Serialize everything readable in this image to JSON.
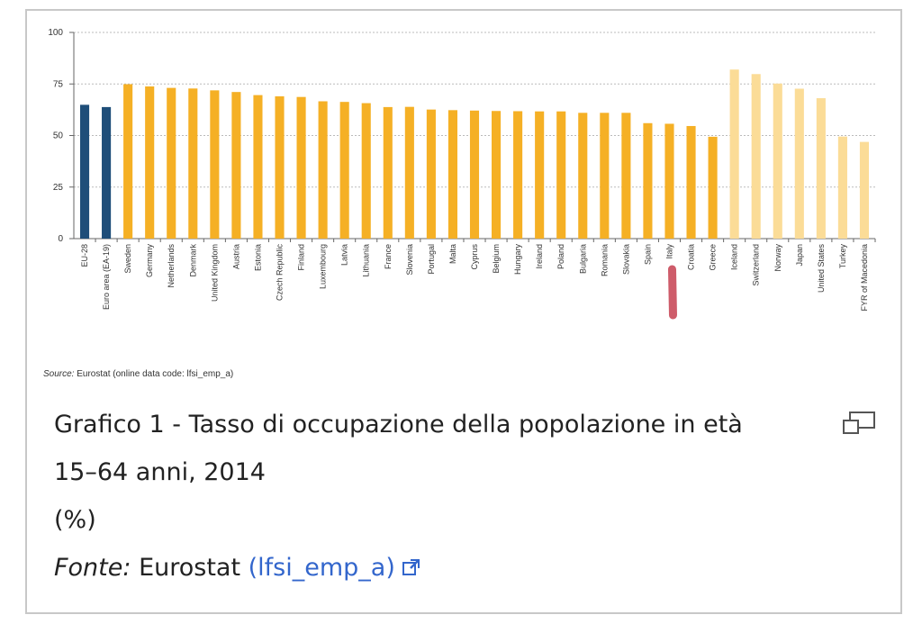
{
  "chart_data": {
    "type": "bar",
    "ylim": [
      0,
      100
    ],
    "yticks": [
      "0",
      "25",
      "50",
      "75",
      "100"
    ],
    "grid": true,
    "categories": [
      "EU-28",
      "Euro area (EA-19)",
      "Sweden",
      "Germany",
      "Netherlands",
      "Denmark",
      "United Kingdom",
      "Austria",
      "Estonia",
      "Czech Republic",
      "Finland",
      "Luxembourg",
      "Latvia",
      "Lithuania",
      "France",
      "Slovenia",
      "Portugal",
      "Malta",
      "Cyprus",
      "Belgium",
      "Hungary",
      "Ireland",
      "Poland",
      "Bulgaria",
      "Romania",
      "Slovakia",
      "Spain",
      "Italy",
      "Croatia",
      "Greece",
      "Iceland",
      "Switzerland",
      "Norway",
      "Japan",
      "United States",
      "Turkey",
      "FYR of Macedonia"
    ],
    "values": [
      64.9,
      63.8,
      74.9,
      73.8,
      73.1,
      72.8,
      71.9,
      71.1,
      69.6,
      69.0,
      68.7,
      66.6,
      66.3,
      65.7,
      63.8,
      63.9,
      62.6,
      62.3,
      62.1,
      61.9,
      61.8,
      61.7,
      61.7,
      61.0,
      61.0,
      61.0,
      56.0,
      55.7,
      54.6,
      49.4,
      82.0,
      79.8,
      75.2,
      72.7,
      68.1,
      49.5,
      46.9
    ],
    "bar_groups": [
      "aggregate",
      "aggregate",
      "eu",
      "eu",
      "eu",
      "eu",
      "eu",
      "eu",
      "eu",
      "eu",
      "eu",
      "eu",
      "eu",
      "eu",
      "eu",
      "eu",
      "eu",
      "eu",
      "eu",
      "eu",
      "eu",
      "eu",
      "eu",
      "eu",
      "eu",
      "eu",
      "eu",
      "eu",
      "eu",
      "eu",
      "other",
      "other",
      "other",
      "other",
      "other",
      "other",
      "other"
    ],
    "colors": {
      "aggregate": "#1f4e79",
      "eu": "#f5b025",
      "other": "#fbdc97",
      "axis": "#666666",
      "grid": "#bbbbbb",
      "marker": "#c94a5a"
    },
    "highlight_category": "Italy"
  },
  "source": {
    "label": "Source:",
    "text": "Eurostat (online data code: lfsi_emp_a)"
  },
  "caption": {
    "line1": "Grafico 1 - Tasso di occupazione della popolazione in età",
    "line2": "15–64 anni, 2014",
    "line3": "(%)",
    "fonte_label": "Fonte:",
    "fonte_text": "Eurostat",
    "fonte_link": "(lfsi_emp_a)"
  },
  "icons": {
    "expand": "expand-icon",
    "external": "external-link-icon"
  }
}
